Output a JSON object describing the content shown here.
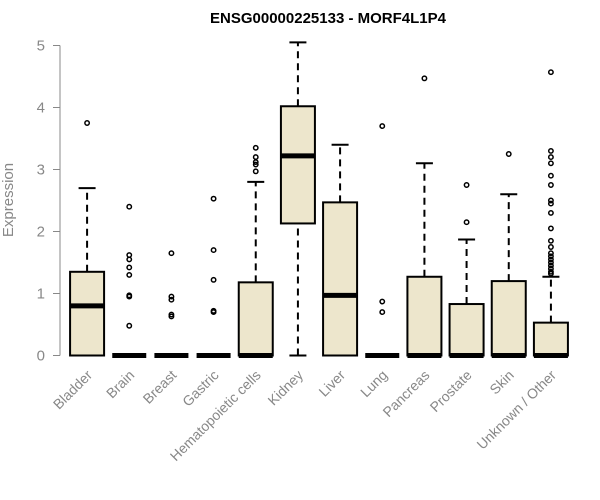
{
  "chart_data": {
    "type": "box",
    "title": "ENSG00000225133 - MORF4L1P4",
    "ylabel": "Expression",
    "xlabel": "",
    "ylim": [
      0,
      5.1
    ],
    "yticks": [
      0,
      1,
      2,
      3,
      4,
      5
    ],
    "grid": false,
    "box_fill": "#ede6cc",
    "box_stroke": "#000000",
    "median_color": "#000000",
    "categories": [
      "Bladder",
      "Brain",
      "Breast",
      "Gastric",
      "Hematopoietic cells",
      "Kidney",
      "Liver",
      "Lung",
      "Pancreas",
      "Prostate",
      "Skin",
      "Unknown / Other"
    ],
    "boxes": [
      {
        "category": "Bladder",
        "q1": 0.0,
        "median": 0.8,
        "q3": 1.35,
        "whisker_low": 0.0,
        "whisker_high": 2.7,
        "outliers": [
          3.75
        ]
      },
      {
        "category": "Brain",
        "q1": 0.0,
        "median": 0.0,
        "q3": 0.0,
        "whisker_low": 0.0,
        "whisker_high": 0.0,
        "outliers": [
          2.4,
          1.62,
          1.55,
          1.42,
          1.3,
          0.97,
          0.95,
          0.48
        ]
      },
      {
        "category": "Breast",
        "q1": 0.0,
        "median": 0.0,
        "q3": 0.0,
        "whisker_low": 0.0,
        "whisker_high": 0.0,
        "outliers": [
          1.65,
          0.95,
          0.9,
          0.66,
          0.63
        ]
      },
      {
        "category": "Gastric",
        "q1": 0.0,
        "median": 0.0,
        "q3": 0.0,
        "whisker_low": 0.0,
        "whisker_high": 0.0,
        "outliers": [
          2.53,
          1.7,
          1.22,
          0.72,
          0.7
        ]
      },
      {
        "category": "Hematopoietic cells",
        "q1": 0.0,
        "median": 0.0,
        "q3": 1.18,
        "whisker_low": 0.0,
        "whisker_high": 2.8,
        "outliers": [
          3.35,
          3.2,
          3.12,
          3.08,
          2.97
        ]
      },
      {
        "category": "Kidney",
        "q1": 2.13,
        "median": 3.22,
        "q3": 4.02,
        "whisker_low": 0.0,
        "whisker_high": 5.05,
        "outliers": []
      },
      {
        "category": "Liver",
        "q1": 0.0,
        "median": 0.97,
        "q3": 2.47,
        "whisker_low": 0.0,
        "whisker_high": 3.4,
        "outliers": []
      },
      {
        "category": "Lung",
        "q1": 0.0,
        "median": 0.0,
        "q3": 0.0,
        "whisker_low": 0.0,
        "whisker_high": 0.0,
        "outliers": [
          3.7,
          0.87,
          0.7
        ]
      },
      {
        "category": "Pancreas",
        "q1": 0.0,
        "median": 0.0,
        "q3": 1.27,
        "whisker_low": 0.0,
        "whisker_high": 3.1,
        "outliers": [
          4.47
        ]
      },
      {
        "category": "Prostate",
        "q1": 0.0,
        "median": 0.0,
        "q3": 0.83,
        "whisker_low": 0.0,
        "whisker_high": 1.87,
        "outliers": [
          2.75,
          2.15
        ]
      },
      {
        "category": "Skin",
        "q1": 0.0,
        "median": 0.0,
        "q3": 1.2,
        "whisker_low": 0.0,
        "whisker_high": 2.6,
        "outliers": [
          3.25
        ]
      },
      {
        "category": "Unknown / Other",
        "q1": 0.0,
        "median": 0.0,
        "q3": 0.53,
        "whisker_low": 0.0,
        "whisker_high": 1.27,
        "outliers": [
          4.57,
          3.3,
          3.2,
          3.1,
          2.9,
          2.75,
          2.5,
          2.45,
          2.3,
          2.05,
          1.85,
          1.75,
          1.65,
          1.6,
          1.55,
          1.5,
          1.45,
          1.4,
          1.35,
          1.32
        ]
      }
    ]
  }
}
